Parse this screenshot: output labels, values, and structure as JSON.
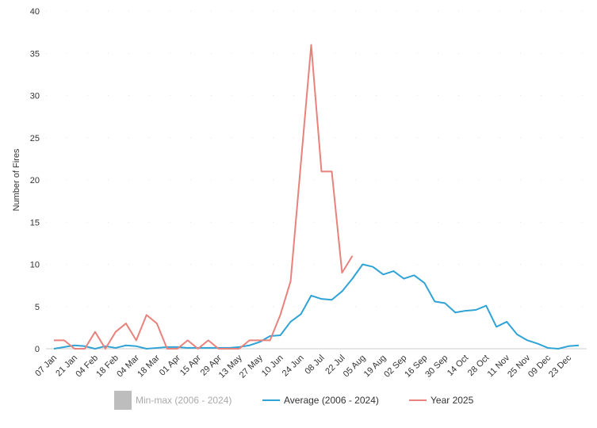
{
  "chart_data": {
    "type": "line",
    "y_label": "Number of Fires",
    "categories": [
      "07 Jan",
      null,
      "21 Jan",
      null,
      "04 Feb",
      null,
      "18 Feb",
      null,
      "04 Mar",
      null,
      "18 Mar",
      null,
      "01 Apr",
      null,
      "15 Apr",
      null,
      "29 Apr",
      null,
      "13 May",
      null,
      "27 May",
      null,
      "10 Jun",
      null,
      "24 Jun",
      null,
      "08 Jul",
      null,
      "22 Jul",
      null,
      "05 Aug",
      null,
      "19 Aug",
      null,
      "02 Sep",
      null,
      "16 Sep",
      null,
      "30 Sep",
      null,
      "14 Oct",
      null,
      "28 Oct",
      null,
      "11 Nov",
      null,
      "25 Nov",
      null,
      "09 Dec",
      null,
      "23 Dec",
      null
    ],
    "series": [
      {
        "name": "Average (2006 - 2024)",
        "color": "#2fa3d6",
        "values": [
          0,
          0.2,
          0.4,
          0.3,
          0,
          0.3,
          0.1,
          0.4,
          0.3,
          0,
          0.1,
          0.2,
          0.2,
          0.1,
          0.1,
          0.1,
          0.1,
          0.1,
          0.2,
          0.4,
          0.8,
          1.5,
          1.6,
          3.2,
          4.1,
          6.3,
          5.9,
          5.8,
          6.8,
          8.3,
          10.0,
          9.7,
          8.8,
          9.2,
          8.3,
          8.7,
          7.8,
          5.6,
          5.4,
          4.3,
          4.5,
          4.6,
          5.1,
          2.6,
          3.2,
          1.7,
          1.0,
          0.6,
          0.1,
          0.0,
          0.3,
          0.4
        ]
      },
      {
        "name": "Year 2025",
        "color": "#e8827c",
        "values": [
          1,
          1,
          0,
          0,
          2,
          0,
          2,
          3,
          1,
          4,
          3,
          0,
          0,
          1,
          0,
          1,
          0,
          0,
          0,
          1,
          1,
          1,
          4,
          8,
          22,
          36,
          21,
          21,
          9,
          11,
          null,
          null,
          null,
          null,
          null,
          null,
          null,
          null,
          null,
          null,
          null,
          null,
          null,
          null,
          null,
          null,
          null,
          null,
          null,
          null,
          null,
          null
        ]
      }
    ],
    "band_legend": {
      "name": "Min-max (2006 - 2024)",
      "color": "#bdbdbd"
    },
    "ylim": [
      0,
      40
    ],
    "yticks": [
      0,
      5,
      10,
      15,
      20,
      25,
      30,
      35,
      40
    ],
    "grid": true
  }
}
